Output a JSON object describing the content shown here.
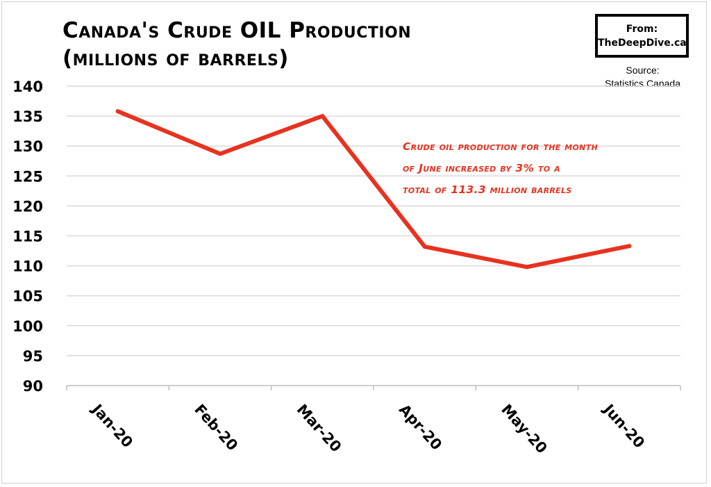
{
  "title_lines": [
    "Canada's Crude OIL Production",
    "(millions of barrels)"
  ],
  "badge": {
    "line1": "From:",
    "line2": "TheDeepDive.ca"
  },
  "source": {
    "line1": "Source:",
    "line2": "Statistics Canada"
  },
  "annotation_lines": [
    "Crude oil production for the month",
    "of June increased by 3% to a",
    "total of 113.3 million barrels"
  ],
  "colors": {
    "line": "#e8321f",
    "grid": "#d9d9d9",
    "text": "#000000",
    "annotation": "#e8321f"
  },
  "chart_data": {
    "type": "line",
    "title": "Canada's Crude OIL Production (millions of barrels)",
    "categories": [
      "Jan-20",
      "Feb-20",
      "Mar-20",
      "Apr-20",
      "May-20",
      "Jun-20"
    ],
    "series": [
      {
        "values": [
          135.8,
          128.7,
          135.0,
          113.2,
          109.8,
          113.3
        ]
      }
    ],
    "ylim": [
      90,
      140
    ],
    "yticks": [
      90,
      95,
      100,
      105,
      110,
      115,
      120,
      125,
      130,
      135,
      140
    ],
    "grid": true,
    "legend": "none",
    "xlabel": "",
    "ylabel": ""
  }
}
